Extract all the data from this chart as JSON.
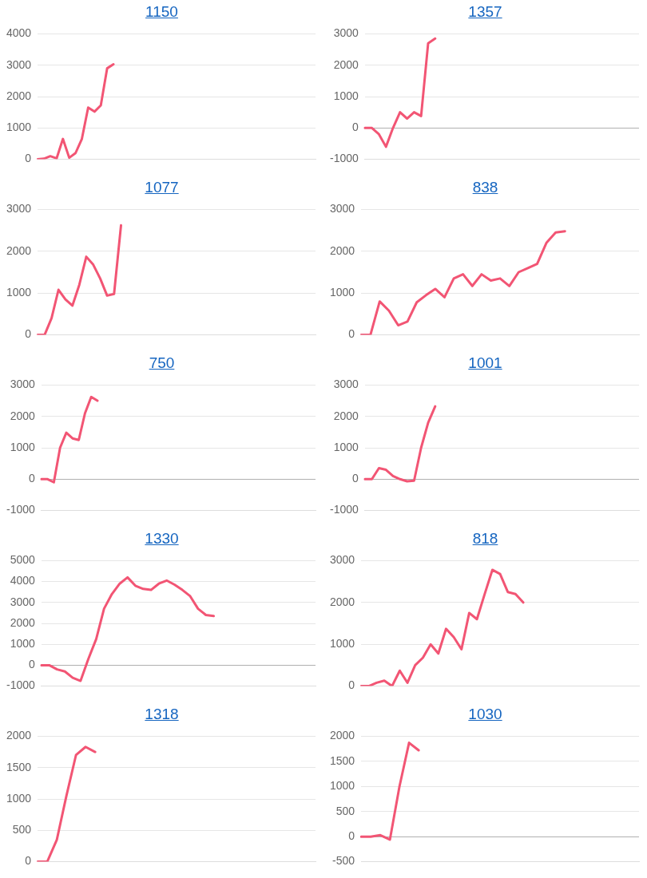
{
  "chart_data": [
    {
      "type": "line",
      "title": "1150",
      "tick_labels": "y",
      "grid": "y",
      "legend": false,
      "marker": "none",
      "line_style": "solid",
      "ylim": [
        0,
        4000
      ],
      "yticks": [
        0,
        1000,
        2000,
        3000,
        4000
      ],
      "categories": [
        null,
        null,
        null,
        null,
        null,
        null,
        null,
        null,
        null,
        null,
        null,
        null,
        null,
        null,
        null,
        null,
        null,
        null,
        null,
        null,
        null,
        null,
        null,
        null,
        null,
        null,
        null,
        null,
        null,
        null,
        null,
        null,
        null,
        null,
        null,
        null,
        null,
        null,
        null,
        null,
        null,
        null,
        null,
        null,
        null
      ],
      "series": [
        {
          "color": "#f25574",
          "values": [
            0,
            20,
            100,
            30,
            650,
            50,
            200,
            650,
            1650,
            1520,
            1720,
            2900,
            3030,
            null,
            null,
            null,
            null,
            null,
            null,
            null,
            null,
            null,
            null,
            null,
            null,
            null,
            null,
            null,
            null,
            null,
            null,
            null,
            null,
            null,
            null,
            null,
            null,
            null,
            null,
            null,
            null,
            null,
            null,
            null,
            null
          ]
        }
      ]
    },
    {
      "type": "line",
      "title": "1357",
      "tick_labels": "y",
      "grid": "y",
      "legend": false,
      "marker": "none",
      "line_style": "solid",
      "ylim": [
        -1000,
        3000
      ],
      "yticks": [
        -1000,
        0,
        1000,
        2000,
        3000
      ],
      "categories": [
        null,
        null,
        null,
        null,
        null,
        null,
        null,
        null,
        null,
        null,
        null,
        null,
        null,
        null,
        null,
        null,
        null,
        null,
        null,
        null,
        null,
        null,
        null,
        null,
        null,
        null,
        null,
        null,
        null,
        null,
        null,
        null,
        null,
        null,
        null,
        null,
        null,
        null,
        null,
        null
      ],
      "series": [
        {
          "color": "#f25574",
          "values": [
            0,
            0,
            -200,
            -600,
            0,
            500,
            300,
            500,
            380,
            2700,
            2850,
            null,
            null,
            null,
            null,
            null,
            null,
            null,
            null,
            null,
            null,
            null,
            null,
            null,
            null,
            null,
            null,
            null,
            null,
            null,
            null,
            null,
            null,
            null,
            null,
            null,
            null,
            null,
            null,
            null
          ]
        }
      ]
    },
    {
      "type": "line",
      "title": "1077",
      "tick_labels": "y",
      "grid": "y",
      "legend": false,
      "marker": "none",
      "line_style": "solid",
      "ylim": [
        0,
        3000
      ],
      "yticks": [
        0,
        1000,
        2000,
        3000
      ],
      "categories": [
        null,
        null,
        null,
        null,
        null,
        null,
        null,
        null,
        null,
        null,
        null,
        null,
        null,
        null,
        null,
        null,
        null,
        null,
        null,
        null,
        null,
        null,
        null,
        null,
        null,
        null,
        null,
        null,
        null,
        null,
        null,
        null,
        null,
        null,
        null,
        null,
        null,
        null,
        null,
        null,
        null
      ],
      "series": [
        {
          "color": "#f25574",
          "values": [
            0,
            0,
            400,
            1080,
            850,
            700,
            1200,
            1870,
            1680,
            1350,
            940,
            980,
            2620,
            null,
            null,
            null,
            null,
            null,
            null,
            null,
            null,
            null,
            null,
            null,
            null,
            null,
            null,
            null,
            null,
            null,
            null,
            null,
            null,
            null,
            null,
            null,
            null,
            null,
            null,
            null,
            null
          ]
        }
      ]
    },
    {
      "type": "line",
      "title": "838",
      "tick_labels": "y",
      "grid": "y",
      "legend": false,
      "marker": "none",
      "line_style": "solid",
      "ylim": [
        0,
        3000
      ],
      "yticks": [
        0,
        1000,
        2000,
        3000
      ],
      "categories": [
        null,
        null,
        null,
        null,
        null,
        null,
        null,
        null,
        null,
        null,
        null,
        null,
        null,
        null,
        null,
        null,
        null,
        null,
        null,
        null,
        null,
        null,
        null,
        null,
        null,
        null,
        null,
        null,
        null,
        null,
        null
      ],
      "series": [
        {
          "color": "#f25574",
          "values": [
            0,
            0,
            800,
            580,
            230,
            320,
            780,
            950,
            1100,
            900,
            1350,
            1450,
            1170,
            1450,
            1300,
            1350,
            1170,
            1500,
            1600,
            1700,
            2200,
            2450,
            2480,
            null,
            null,
            null,
            null,
            null,
            null,
            null,
            null
          ]
        }
      ]
    },
    {
      "type": "line",
      "title": "750",
      "tick_labels": "y",
      "grid": "y",
      "legend": false,
      "marker": "none",
      "line_style": "solid",
      "ylim": [
        -1000,
        3000
      ],
      "yticks": [
        -1000,
        0,
        1000,
        2000,
        3000
      ],
      "categories": [
        null,
        null,
        null,
        null,
        null,
        null,
        null,
        null,
        null,
        null,
        null,
        null,
        null,
        null,
        null,
        null,
        null,
        null,
        null,
        null,
        null,
        null,
        null,
        null,
        null,
        null,
        null,
        null,
        null,
        null,
        null,
        null,
        null,
        null,
        null,
        null,
        null,
        null,
        null,
        null,
        null,
        null,
        null,
        null,
        null
      ],
      "series": [
        {
          "color": "#f25574",
          "values": [
            0,
            0,
            -100,
            1000,
            1480,
            1300,
            1250,
            2100,
            2620,
            2500,
            null,
            null,
            null,
            null,
            null,
            null,
            null,
            null,
            null,
            null,
            null,
            null,
            null,
            null,
            null,
            null,
            null,
            null,
            null,
            null,
            null,
            null,
            null,
            null,
            null,
            null,
            null,
            null,
            null,
            null,
            null,
            null,
            null,
            null,
            null
          ]
        }
      ]
    },
    {
      "type": "line",
      "title": "1001",
      "tick_labels": "y",
      "grid": "y",
      "legend": false,
      "marker": "none",
      "line_style": "solid",
      "ylim": [
        -1000,
        3000
      ],
      "yticks": [
        -1000,
        0,
        1000,
        2000,
        3000
      ],
      "categories": [
        null,
        null,
        null,
        null,
        null,
        null,
        null,
        null,
        null,
        null,
        null,
        null,
        null,
        null,
        null,
        null,
        null,
        null,
        null,
        null,
        null,
        null,
        null,
        null,
        null,
        null,
        null,
        null,
        null,
        null,
        null,
        null,
        null,
        null,
        null,
        null,
        null,
        null,
        null,
        null
      ],
      "series": [
        {
          "color": "#f25574",
          "values": [
            0,
            0,
            350,
            300,
            100,
            0,
            -70,
            -50,
            1000,
            1800,
            2320,
            null,
            null,
            null,
            null,
            null,
            null,
            null,
            null,
            null,
            null,
            null,
            null,
            null,
            null,
            null,
            null,
            null,
            null,
            null,
            null,
            null,
            null,
            null,
            null,
            null,
            null,
            null,
            null,
            null
          ]
        }
      ]
    },
    {
      "type": "line",
      "title": "1330",
      "tick_labels": "y",
      "grid": "y",
      "legend": false,
      "marker": "none",
      "line_style": "solid",
      "ylim": [
        -1000,
        5000
      ],
      "yticks": [
        -1000,
        0,
        1000,
        2000,
        3000,
        4000,
        5000
      ],
      "categories": [
        null,
        null,
        null,
        null,
        null,
        null,
        null,
        null,
        null,
        null,
        null,
        null,
        null,
        null,
        null,
        null,
        null,
        null,
        null,
        null,
        null,
        null,
        null,
        null,
        null,
        null,
        null,
        null,
        null,
        null,
        null,
        null,
        null,
        null,
        null,
        null
      ],
      "series": [
        {
          "color": "#f25574",
          "values": [
            0,
            0,
            -200,
            -300,
            -600,
            -750,
            300,
            1250,
            2700,
            3400,
            3900,
            4200,
            3800,
            3650,
            3600,
            3900,
            4050,
            3850,
            3600,
            3300,
            2700,
            2400,
            2350,
            null,
            null,
            null,
            null,
            null,
            null,
            null,
            null,
            null,
            null,
            null,
            null,
            null
          ]
        }
      ]
    },
    {
      "type": "line",
      "title": "818",
      "tick_labels": "y",
      "grid": "y",
      "legend": false,
      "marker": "none",
      "line_style": "solid",
      "ylim": [
        0,
        3000
      ],
      "yticks": [
        0,
        1000,
        2000,
        3000
      ],
      "categories": [
        null,
        null,
        null,
        null,
        null,
        null,
        null,
        null,
        null,
        null,
        null,
        null,
        null,
        null,
        null,
        null,
        null,
        null,
        null,
        null,
        null,
        null,
        null,
        null,
        null,
        null,
        null,
        null,
        null,
        null,
        null,
        null,
        null,
        null,
        null,
        null,
        null
      ],
      "series": [
        {
          "color": "#f25574",
          "values": [
            0,
            0,
            80,
            130,
            0,
            370,
            80,
            500,
            680,
            1000,
            780,
            1370,
            1170,
            880,
            1750,
            1600,
            2200,
            2780,
            2680,
            2250,
            2200,
            2000,
            null,
            null,
            null,
            null,
            null,
            null,
            null,
            null,
            null,
            null,
            null,
            null,
            null,
            null,
            null
          ]
        }
      ]
    },
    {
      "type": "line",
      "title": "1318",
      "tick_labels": "y",
      "grid": "y",
      "legend": false,
      "marker": "none",
      "line_style": "solid",
      "ylim": [
        0,
        2000
      ],
      "yticks": [
        0,
        500,
        1000,
        1500,
        2000
      ],
      "categories": [
        null,
        null,
        null,
        null,
        null,
        null,
        null,
        null,
        null,
        null,
        null,
        null,
        null,
        null,
        null,
        null,
        null,
        null,
        null,
        null,
        null,
        null,
        null,
        null,
        null,
        null,
        null,
        null,
        null,
        null
      ],
      "series": [
        {
          "color": "#f25574",
          "values": [
            0,
            0,
            350,
            1050,
            1700,
            1830,
            1750,
            null,
            null,
            null,
            null,
            null,
            null,
            null,
            null,
            null,
            null,
            null,
            null,
            null,
            null,
            null,
            null,
            null,
            null,
            null,
            null,
            null,
            null,
            null
          ]
        }
      ]
    },
    {
      "type": "line",
      "title": "1030",
      "tick_labels": "y",
      "grid": "y",
      "legend": false,
      "marker": "none",
      "line_style": "solid",
      "ylim": [
        -500,
        2000
      ],
      "yticks": [
        -500,
        0,
        500,
        1000,
        1500,
        2000
      ],
      "categories": [
        null,
        null,
        null,
        null,
        null,
        null,
        null,
        null,
        null,
        null,
        null,
        null,
        null,
        null,
        null,
        null,
        null,
        null,
        null,
        null,
        null,
        null,
        null,
        null,
        null,
        null,
        null,
        null,
        null,
        null
      ],
      "series": [
        {
          "color": "#f25574",
          "values": [
            0,
            0,
            30,
            -60,
            1000,
            1870,
            1720,
            null,
            null,
            null,
            null,
            null,
            null,
            null,
            null,
            null,
            null,
            null,
            null,
            null,
            null,
            null,
            null,
            null,
            null,
            null,
            null,
            null,
            null,
            null
          ]
        }
      ]
    }
  ]
}
